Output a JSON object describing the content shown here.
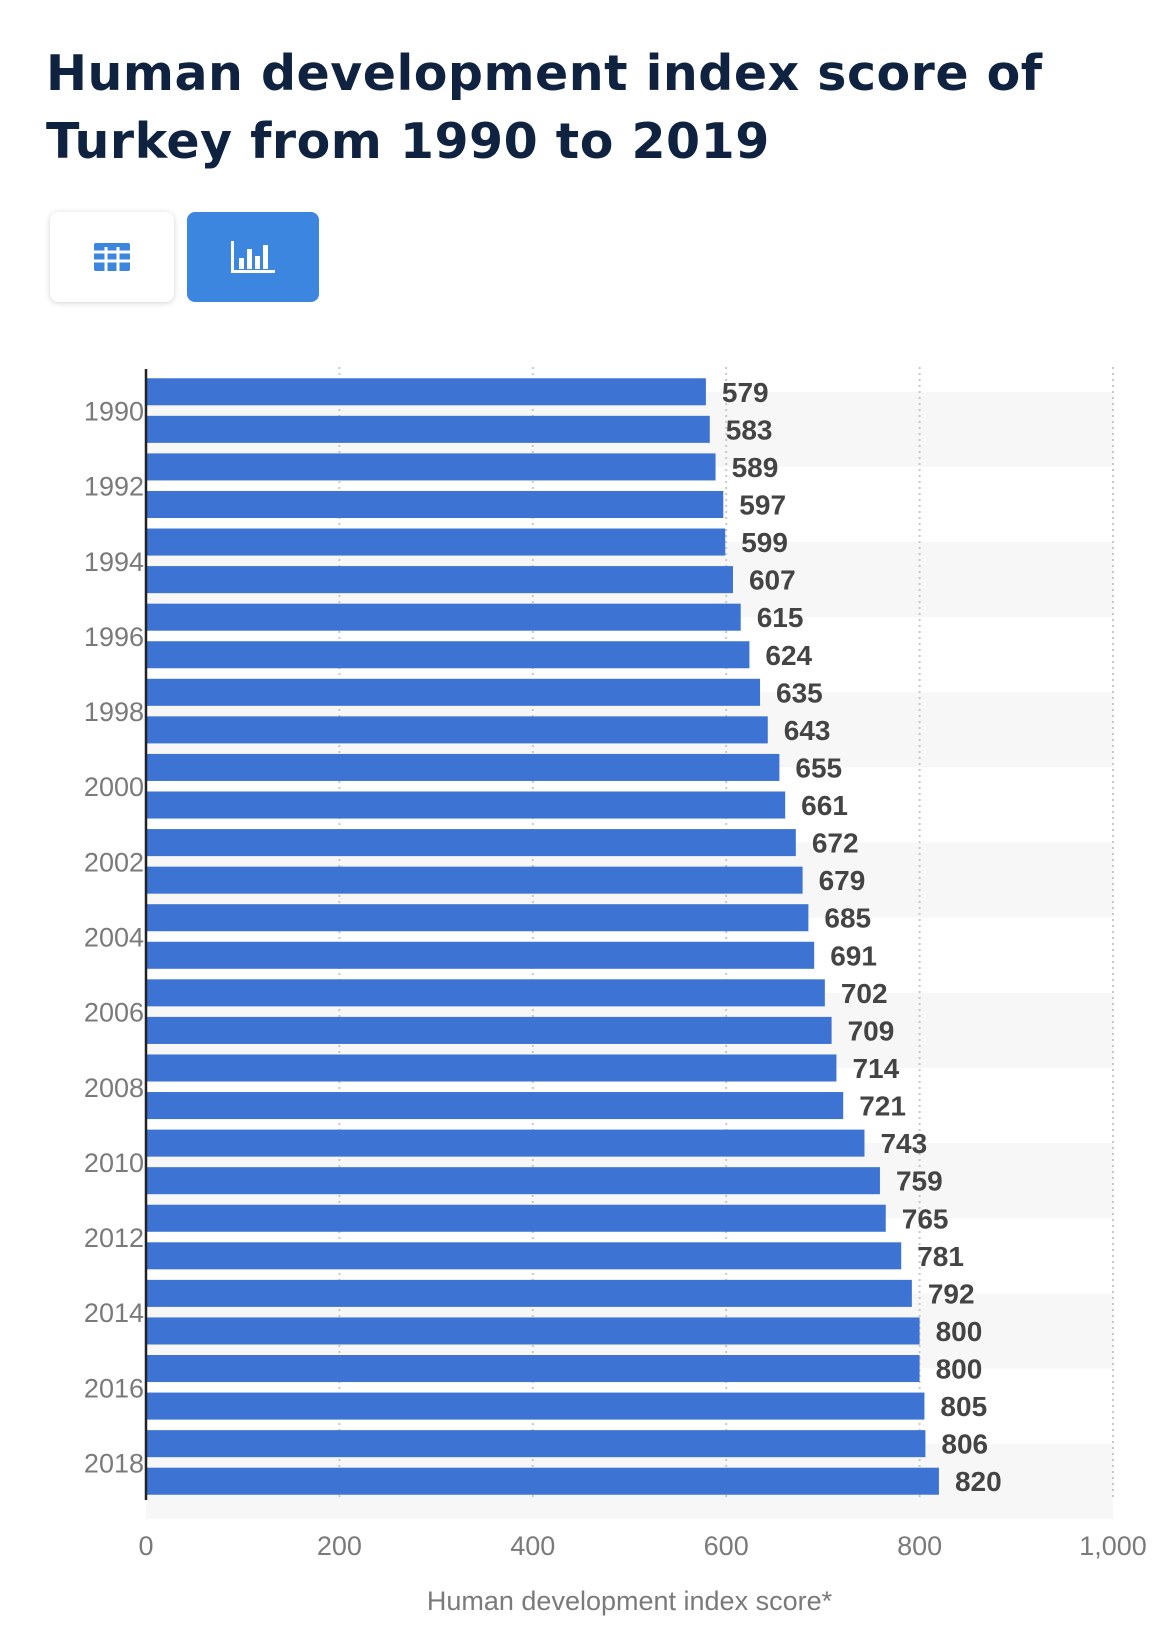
{
  "page": {
    "title": "Human development index score of Turkey from 1990 to 2019"
  },
  "toolbar": {
    "table_view_icon": "table-grid-icon",
    "chart_view_icon": "bar-chart-icon",
    "active_view": "chart"
  },
  "colors": {
    "bar": "#3d74d4",
    "accent": "#3d86e0",
    "title": "#0f2240"
  },
  "chart_data": {
    "type": "bar",
    "orientation": "horizontal",
    "title": "Human development index score of Turkey from 1990 to 2019",
    "xlabel": "Human development index score*",
    "ylabel": "",
    "xlim": [
      0,
      1000
    ],
    "x_ticks": [
      "0",
      "200",
      "400",
      "600",
      "800",
      "1,000"
    ],
    "grid": true,
    "categories": [
      "1990",
      "1991",
      "1992",
      "1993",
      "1994",
      "1995",
      "1996",
      "1997",
      "1998",
      "1999",
      "2000",
      "2001",
      "2002",
      "2003",
      "2004",
      "2005",
      "2006",
      "2007",
      "2008",
      "2009",
      "2010",
      "2011",
      "2012",
      "2013",
      "2014",
      "2015",
      "2016",
      "2017",
      "2018",
      "2019"
    ],
    "category_labels_shown": [
      "1990",
      "1992",
      "1994",
      "1996",
      "1998",
      "2000",
      "2002",
      "2004",
      "2006",
      "2008",
      "2010",
      "2012",
      "2014",
      "2016",
      "2018"
    ],
    "values": [
      579,
      583,
      589,
      597,
      599,
      607,
      615,
      624,
      635,
      643,
      655,
      661,
      672,
      679,
      685,
      691,
      702,
      709,
      714,
      721,
      743,
      759,
      765,
      781,
      792,
      800,
      800,
      805,
      806,
      820
    ]
  }
}
